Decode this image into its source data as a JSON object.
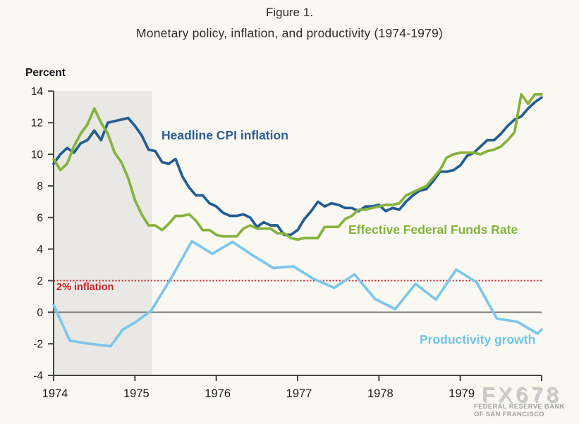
{
  "figure": {
    "label": "Figure 1.",
    "title": "Monetary policy, inflation, and productivity (1974-1979)",
    "y_axis_title": "Percent"
  },
  "annotations": {
    "cpi_label": "Headline CPI inflation",
    "ffr_label": "Effective Federal Funds Rate",
    "productivity_label": "Productivity growth",
    "inflation_target_label": "2% inflation"
  },
  "watermark": {
    "logo": "FX678",
    "line1": "FEDERAL RESERVE BANK",
    "line2": "OF SAN FRANCISCO"
  },
  "colors": {
    "cpi_line": "#235d92",
    "cpi_label": "#2d6092",
    "ffr_line": "#85b33c",
    "ffr_label": "#84b23c",
    "productivity_line": "#7cc7e9",
    "productivity_label": "#6fc4e8",
    "target_line": "#c32427",
    "recession_band": "#e9e8e5",
    "background": "#faf8f3",
    "axis": "#444444",
    "zero_line": "#7d7d7d",
    "tick_text": "#1c1c1c",
    "title_text": "#2e2d2b",
    "watermark_logo": "#d2c8bb",
    "watermark_text": "#a3a19d"
  },
  "chart_data": {
    "type": "line",
    "title": "Monetary policy, inflation, and productivity (1974-1979)",
    "xlabel": "",
    "ylabel": "Percent",
    "xlim": [
      1974,
      1980
    ],
    "ylim": [
      -4,
      14
    ],
    "x_ticks": [
      1974,
      1975,
      1976,
      1977,
      1978,
      1979
    ],
    "y_ticks": [
      14,
      12,
      10,
      8,
      6,
      4,
      2,
      0,
      -2,
      -4
    ],
    "grid": false,
    "legend_position": "inline-labels",
    "recession_band_x": [
      1974.0,
      1975.21
    ],
    "target_line_y": 2,
    "zero_line_y": 0,
    "series": [
      {
        "id": "productivity",
        "name": "Productivity growth",
        "color": "#7cc7e9",
        "points": [
          [
            1974.0,
            0.45
          ],
          [
            1974.2,
            -1.8
          ],
          [
            1974.45,
            -2.0
          ],
          [
            1974.7,
            -2.15
          ],
          [
            1974.85,
            -1.1
          ],
          [
            1975.0,
            -0.65
          ],
          [
            1975.2,
            0.1
          ],
          [
            1975.45,
            2.2
          ],
          [
            1975.7,
            4.5
          ],
          [
            1975.95,
            3.7
          ],
          [
            1976.2,
            4.45
          ],
          [
            1976.45,
            3.6
          ],
          [
            1976.7,
            2.8
          ],
          [
            1976.95,
            2.9
          ],
          [
            1977.2,
            2.1
          ],
          [
            1977.45,
            1.55
          ],
          [
            1977.7,
            2.4
          ],
          [
            1977.95,
            0.85
          ],
          [
            1978.2,
            0.2
          ],
          [
            1978.45,
            1.8
          ],
          [
            1978.7,
            0.8
          ],
          [
            1978.95,
            2.7
          ],
          [
            1979.2,
            1.9
          ],
          [
            1979.45,
            -0.4
          ],
          [
            1979.7,
            -0.6
          ],
          [
            1979.95,
            -1.35
          ],
          [
            1980.0,
            -1.1
          ]
        ]
      },
      {
        "id": "cpi",
        "name": "Headline CPI inflation",
        "color": "#235d92",
        "x_start": 1974.0,
        "x_step": 0.0833333,
        "values": [
          9.4,
          10.0,
          10.4,
          10.1,
          10.7,
          10.9,
          11.5,
          10.9,
          12.0,
          12.1,
          12.2,
          12.3,
          11.8,
          11.2,
          10.3,
          10.2,
          9.5,
          9.4,
          9.7,
          8.6,
          7.9,
          7.4,
          7.4,
          6.9,
          6.7,
          6.3,
          6.1,
          6.1,
          6.2,
          6.0,
          5.4,
          5.7,
          5.5,
          5.5,
          4.9,
          4.9,
          5.2,
          5.9,
          6.4,
          7.0,
          6.7,
          6.9,
          6.8,
          6.6,
          6.6,
          6.4,
          6.7,
          6.7,
          6.8,
          6.4,
          6.6,
          6.5,
          7.0,
          7.4,
          7.7,
          7.8,
          8.3,
          8.9,
          8.9,
          9.0,
          9.3,
          9.9,
          10.1,
          10.5,
          10.9,
          10.9,
          11.3,
          11.8,
          12.2,
          12.4,
          12.9,
          13.3,
          13.6
        ]
      },
      {
        "id": "ffr",
        "name": "Effective Federal Funds Rate",
        "color": "#85b33c",
        "x_start": 1974.0,
        "x_step": 0.0833333,
        "values": [
          9.7,
          9.0,
          9.4,
          10.5,
          11.3,
          11.9,
          12.9,
          12.0,
          11.3,
          10.1,
          9.5,
          8.5,
          7.1,
          6.2,
          5.5,
          5.5,
          5.2,
          5.6,
          6.1,
          6.1,
          6.2,
          5.8,
          5.2,
          5.2,
          4.9,
          4.8,
          4.8,
          4.8,
          5.3,
          5.5,
          5.3,
          5.3,
          5.3,
          5.0,
          5.0,
          4.7,
          4.6,
          4.7,
          4.7,
          4.7,
          5.4,
          5.4,
          5.4,
          5.9,
          6.1,
          6.5,
          6.5,
          6.6,
          6.7,
          6.8,
          6.8,
          6.9,
          7.4,
          7.6,
          7.8,
          8.0,
          8.5,
          9.0,
          9.8,
          10.0,
          10.1,
          10.1,
          10.1,
          10.0,
          10.2,
          10.3,
          10.5,
          10.9,
          11.4,
          13.8,
          13.2,
          13.8,
          13.8
        ]
      }
    ]
  }
}
